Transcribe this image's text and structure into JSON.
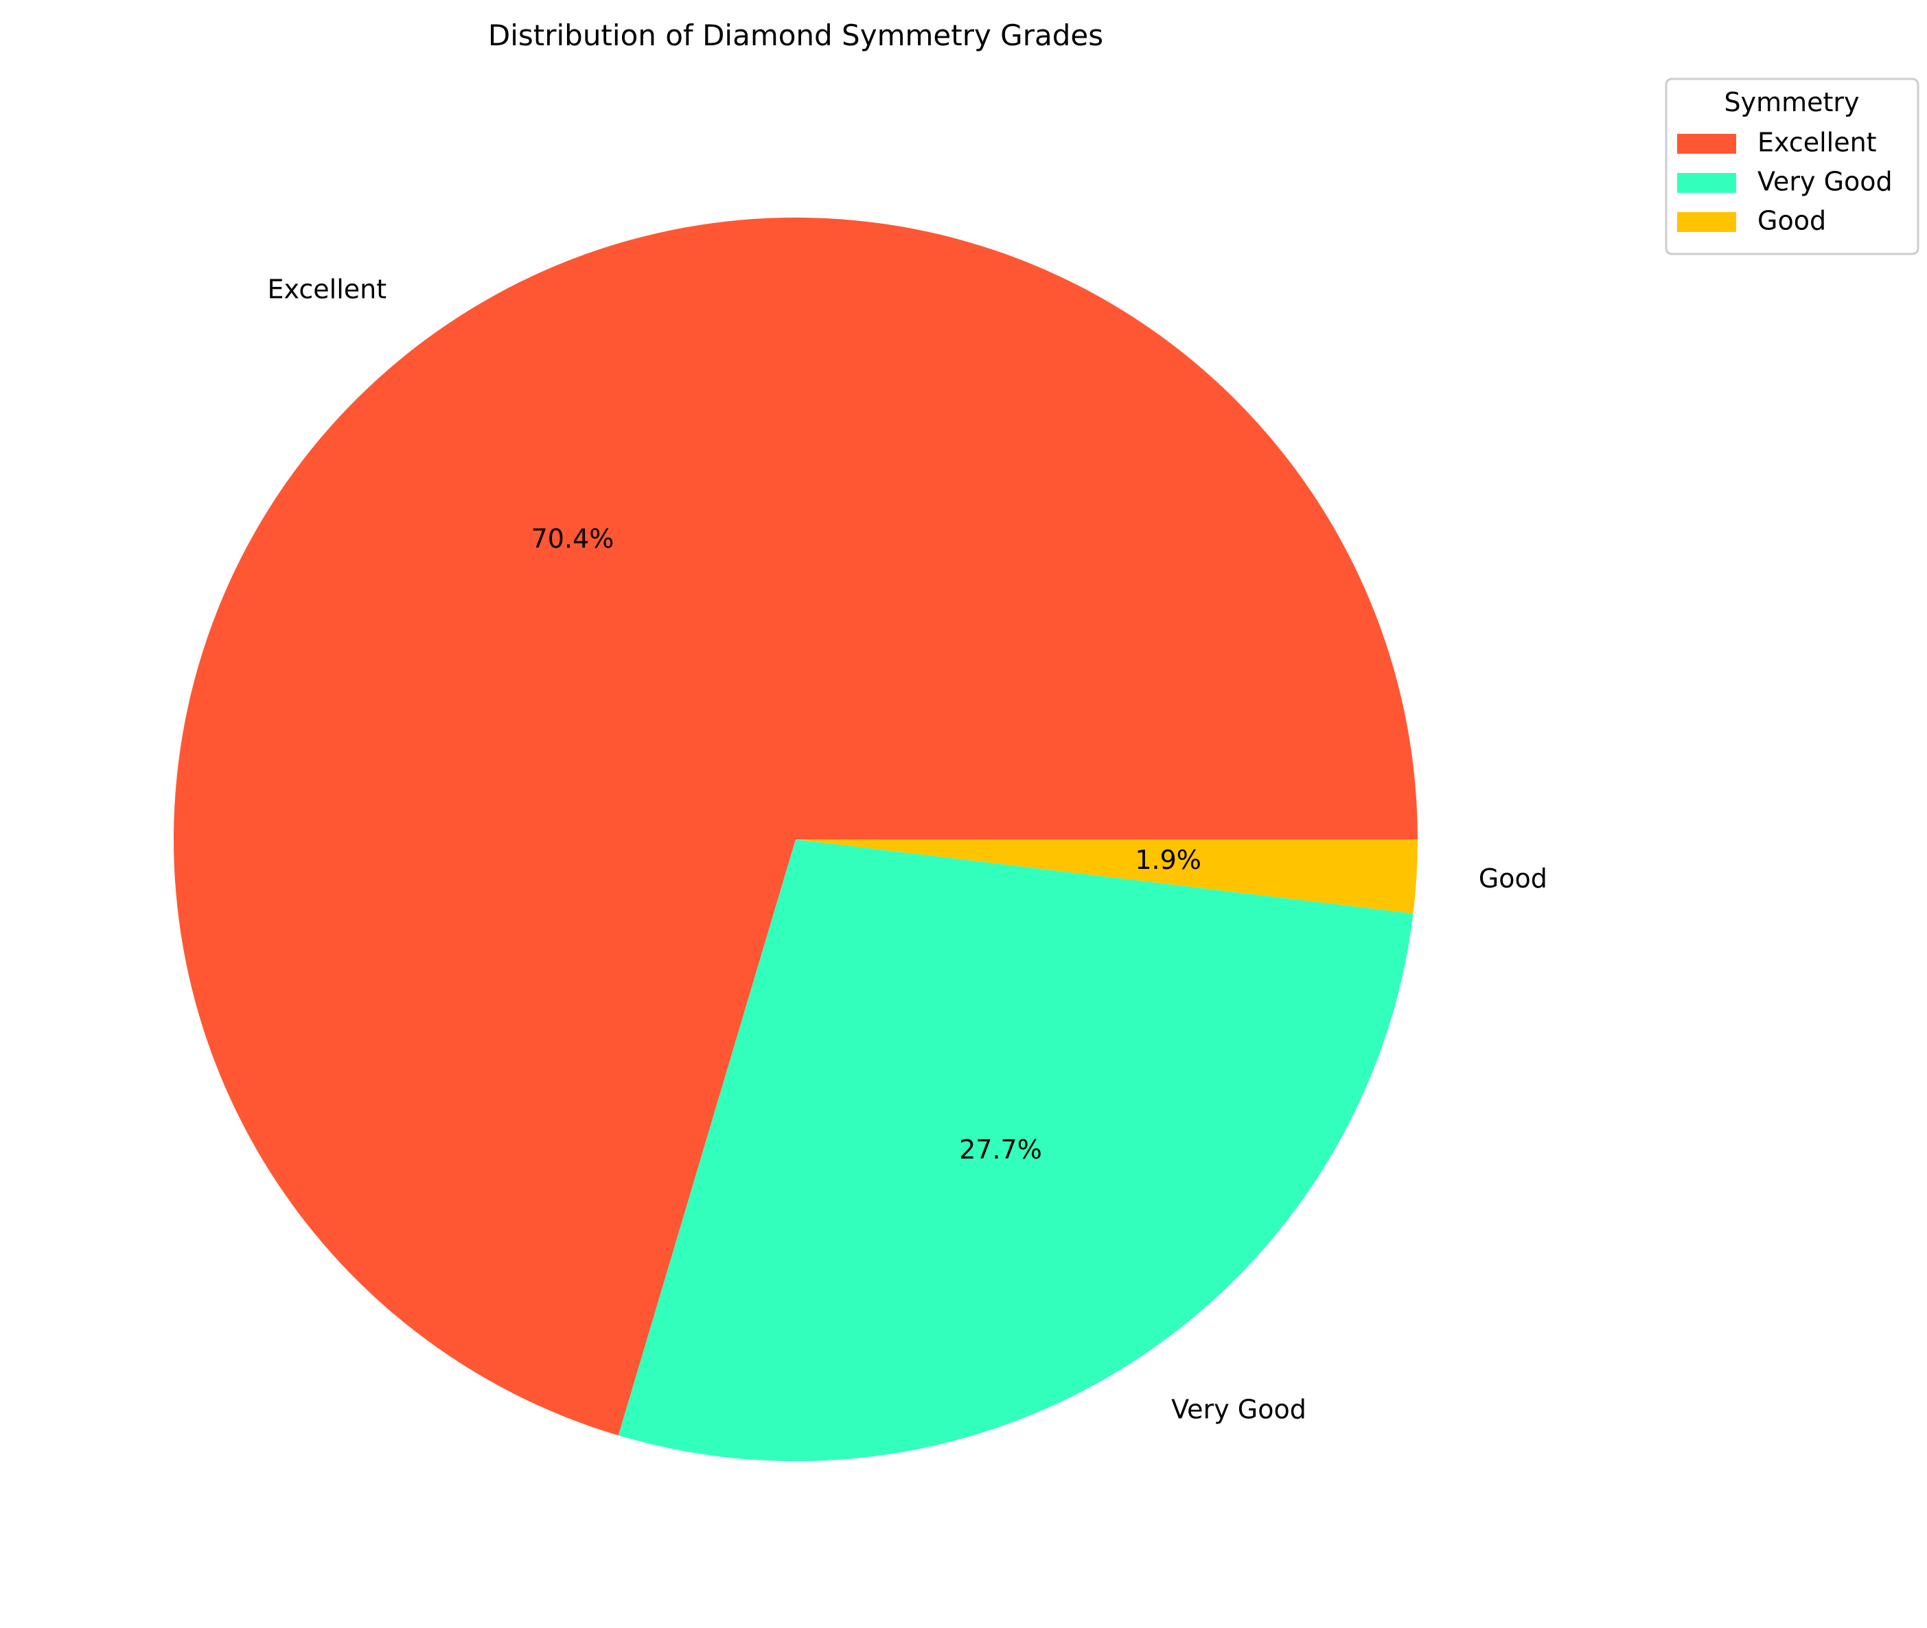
{
  "chart_data": {
    "type": "pie",
    "title": "Distribution of Diamond Symmetry Grades",
    "categories": [
      "Excellent",
      "Very Good",
      "Good"
    ],
    "values": [
      70.4,
      27.7,
      1.9
    ],
    "percent_labels": [
      "70.4%",
      "27.7%",
      "1.9%"
    ],
    "colors": [
      "#FF5733",
      "#33FFBD",
      "#FFC300"
    ],
    "start_angle": 0,
    "direction": "counterclockwise",
    "legend": {
      "title": "Symmetry",
      "placement": "top-right",
      "entries": [
        "Excellent",
        "Very Good",
        "Good"
      ]
    }
  }
}
